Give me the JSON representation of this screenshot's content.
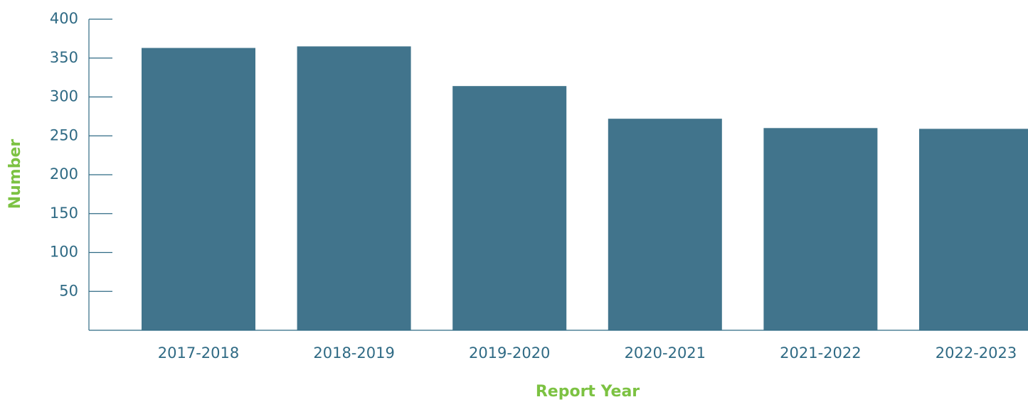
{
  "chart_data": {
    "type": "bar",
    "categories": [
      "2017-2018",
      "2018-2019",
      "2019-2020",
      "2020-2021",
      "2021-2022",
      "2022-2023"
    ],
    "values": [
      363,
      365,
      314,
      272,
      260,
      259
    ],
    "color": "#41748c",
    "xlabel": "Report Year",
    "ylabel": "Number",
    "ylim": [
      0,
      400
    ],
    "yticks": [
      50,
      100,
      150,
      200,
      250,
      300,
      350,
      400
    ]
  }
}
